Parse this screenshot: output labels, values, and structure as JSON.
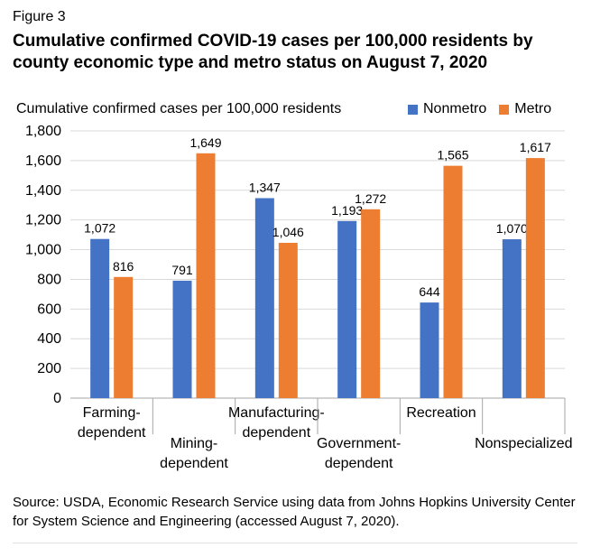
{
  "figure_label": "Figure 3",
  "title": "Cumulative confirmed COVID-19 cases per 100,000 residents by county economic type and metro status on August 7, 2020",
  "source": "Source: USDA, Economic Research Service using data from Johns Hopkins University Center for System Science and Engineering (accessed August 7, 2020).",
  "chart_data": {
    "type": "bar",
    "ylabel": "Cumulative confirmed cases per 100,000 residents",
    "ylim": [
      0,
      1800
    ],
    "yticks": [
      "0",
      "200",
      "400",
      "600",
      "800",
      "1,000",
      "1,200",
      "1,400",
      "1,600",
      "1,800"
    ],
    "categories": [
      [
        "Farming-",
        "dependent"
      ],
      [
        "Mining-",
        "dependent"
      ],
      [
        "Manufacturing-",
        "dependent"
      ],
      [
        "Government-",
        "dependent"
      ],
      [
        "Recreation"
      ],
      [
        "Nonspecialized"
      ]
    ],
    "series": [
      {
        "name": "Nonmetro",
        "color": "#4472c4",
        "values": [
          1072,
          791,
          1347,
          1193,
          644,
          1070
        ],
        "labels": [
          "1,072",
          "791",
          "1,347",
          "1,193",
          "644",
          "1,070"
        ]
      },
      {
        "name": "Metro",
        "color": "#ed7d31",
        "values": [
          816,
          1649,
          1046,
          1272,
          1565,
          1617
        ],
        "labels": [
          "816",
          "1,649",
          "1,046",
          "1,272",
          "1,565",
          "1,617"
        ]
      }
    ],
    "grid": true,
    "legend": "top-right"
  }
}
